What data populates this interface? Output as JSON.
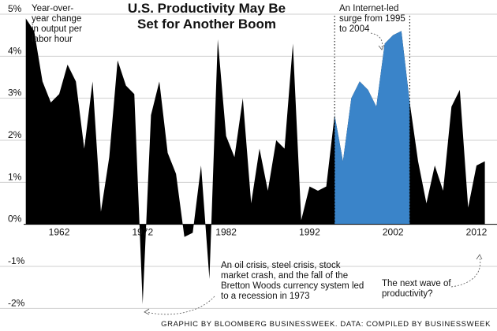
{
  "chart_data": {
    "type": "area",
    "title": "U.S. Productivity May Be Set for Another Boom",
    "title_lines": [
      "U.S. Productivity May Be",
      "Set for Another Boom"
    ],
    "ylabel": "Year-over-year change in output per labor hour",
    "ylabel_lines": [
      "Year-over-",
      "year change",
      "in output per",
      "labor hour"
    ],
    "ylim": [
      -2.2,
      5.0
    ],
    "xlim": [
      1958.5,
      2013.7
    ],
    "y_ticks": [
      -2,
      -1,
      0,
      1,
      2,
      3,
      4,
      5
    ],
    "y_tick_labels": [
      "-2%",
      "-1%",
      "0%",
      "1%",
      "2%",
      "3%",
      "4%",
      "5%"
    ],
    "x_tick_labels": [
      "1962",
      "1972",
      "1982",
      "1992",
      "2002",
      "2012"
    ],
    "grid": true,
    "colors": {
      "series": "#000000",
      "highlight": "#3a84c9",
      "grid": "#cfcfcf",
      "text": "#111111"
    },
    "highlight_range": [
      1995,
      2004
    ],
    "x": [
      1958,
      1959,
      1960,
      1961,
      1962,
      1963,
      1964,
      1965,
      1966,
      1967,
      1968,
      1969,
      1970,
      1971,
      1972,
      1973,
      1974,
      1975,
      1976,
      1977,
      1978,
      1979,
      1980,
      1981,
      1982,
      1983,
      1984,
      1985,
      1986,
      1987,
      1988,
      1989,
      1990,
      1991,
      1992,
      1993,
      1994,
      1995,
      1996,
      1997,
      1998,
      1999,
      2000,
      2001,
      2002,
      2003,
      2004,
      2005,
      2006,
      2007,
      2008,
      2009,
      2010,
      2011,
      2012,
      2013
    ],
    "values": [
      4.9,
      4.6,
      3.4,
      2.9,
      3.1,
      3.8,
      3.4,
      1.8,
      3.4,
      0.3,
      1.6,
      3.9,
      3.3,
      3.1,
      -1.9,
      2.6,
      3.4,
      1.7,
      1.2,
      -0.3,
      -0.2,
      1.4,
      -1.3,
      4.4,
      2.1,
      1.6,
      3.0,
      0.5,
      1.8,
      0.8,
      2.0,
      1.8,
      4.3,
      0.1,
      0.9,
      0.8,
      0.9,
      2.6,
      1.5,
      3.0,
      3.4,
      3.2,
      2.8,
      4.3,
      4.5,
      4.6,
      2.9,
      1.5,
      0.5,
      1.4,
      0.8,
      2.8,
      3.2,
      0.4,
      1.4,
      1.5
    ],
    "annotations": [
      {
        "id": "internet",
        "lines": [
          "An Internet-led",
          "surge from 1995",
          "to 2004"
        ]
      },
      {
        "id": "recession",
        "lines": [
          "An oil crisis, steel crisis, stock",
          "market crash, and the fall of the",
          "Bretton Woods currency system led",
          "to a recession in 1973"
        ]
      },
      {
        "id": "next-wave",
        "lines": [
          "The next wave of",
          "productivity?"
        ]
      }
    ],
    "credit": "GRAPHIC BY BLOOMBERG BUSINESSWEEK. DATA: COMPILED BY BUSINESSWEEK"
  }
}
